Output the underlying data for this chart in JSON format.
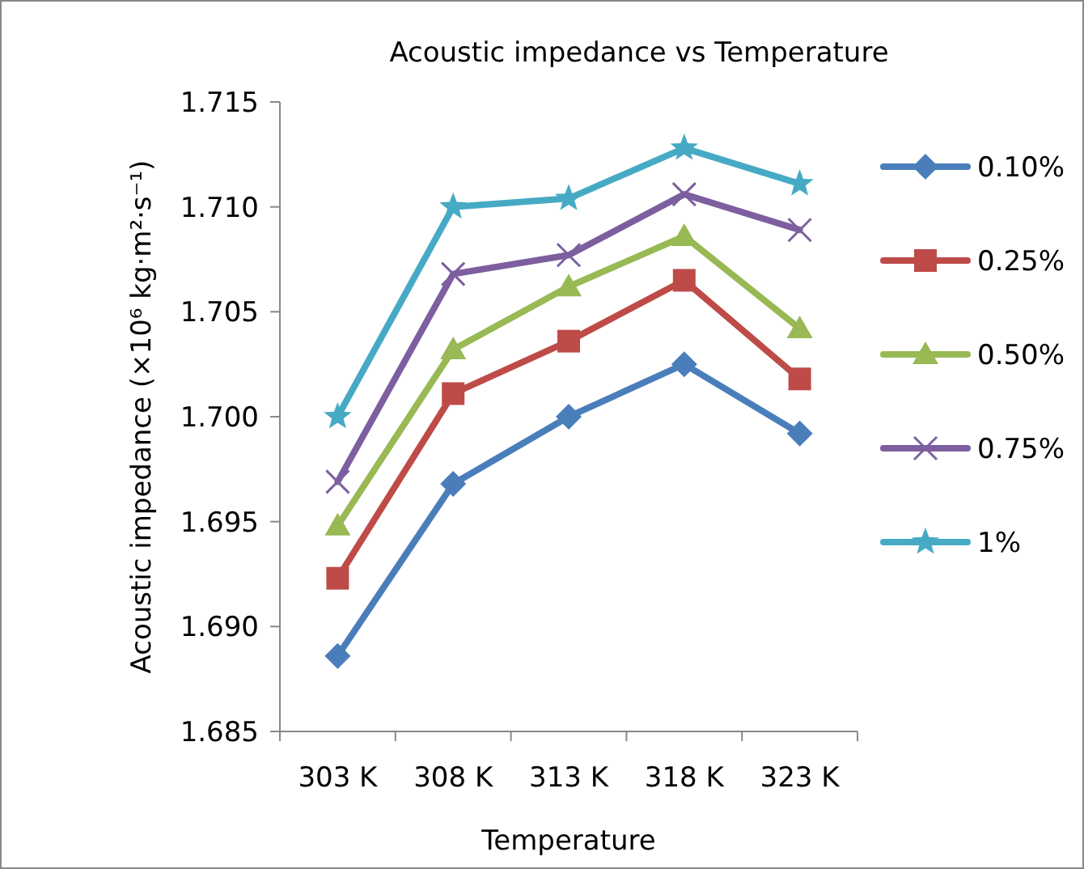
{
  "chart_data": {
    "type": "line",
    "title": "Acoustic impedance vs Temperature",
    "xlabel": "Temperature",
    "ylabel": "Acoustic impedance (×10⁶ kg·m²·s⁻¹)",
    "categories": [
      "303 K",
      "308 K",
      "313 K",
      "318 K",
      "323 K"
    ],
    "series": [
      {
        "name": "0.10%",
        "color": "#4a7ebb",
        "marker": "diamond",
        "values": [
          1.6886,
          1.6968,
          1.7,
          1.7025,
          1.6992
        ]
      },
      {
        "name": "0.25%",
        "color": "#be4b48",
        "marker": "square",
        "values": [
          1.6923,
          1.7011,
          1.7036,
          1.7065,
          1.7018
        ]
      },
      {
        "name": "0.50%",
        "color": "#98b954",
        "marker": "triangle",
        "values": [
          1.6948,
          1.7032,
          1.7062,
          1.7086,
          1.7042
        ]
      },
      {
        "name": "0.75%",
        "color": "#7d5fa0",
        "marker": "cross",
        "values": [
          1.6969,
          1.7068,
          1.7077,
          1.7106,
          1.7089
        ]
      },
      {
        "name": "1%",
        "color": "#46aac5",
        "marker": "star",
        "values": [
          1.7,
          1.71,
          1.7104,
          1.7128,
          1.7111
        ]
      }
    ],
    "ylim": [
      1.685,
      1.715
    ],
    "yticks": [
      {
        "value": 1.685,
        "label": "1.685"
      },
      {
        "value": 1.69,
        "label": "1.690"
      },
      {
        "value": 1.695,
        "label": "1.695"
      },
      {
        "value": 1.7,
        "label": "1.700"
      },
      {
        "value": 1.705,
        "label": "1.705"
      },
      {
        "value": 1.71,
        "label": "1.710"
      },
      {
        "value": 1.715,
        "label": "1.715"
      }
    ],
    "grid": false,
    "legend": "right"
  }
}
